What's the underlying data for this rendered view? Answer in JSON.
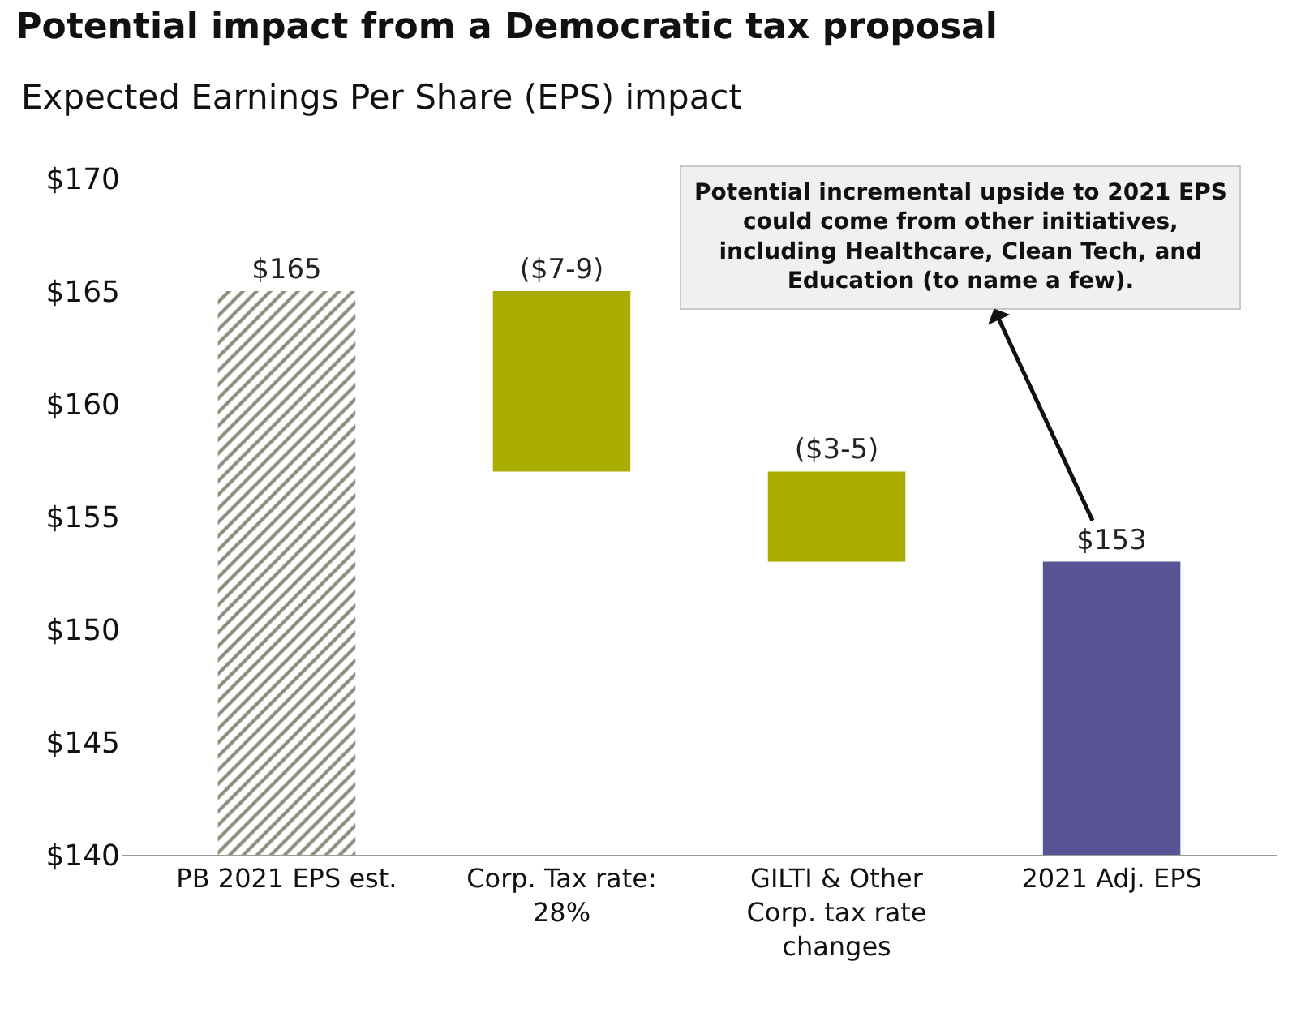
{
  "chart_data": {
    "type": "bar",
    "title": "Potential impact from a Democratic tax proposal",
    "subtitle": "Expected Earnings Per Share (EPS) impact",
    "categories": [
      "PB 2021 EPS est.",
      "Corp. Tax rate: 28%",
      "GILTI & Other Corp. tax rate changes",
      "2021 Adj. EPS"
    ],
    "values": [
      25,
      8,
      4,
      13
    ],
    "base": [
      140,
      157,
      153,
      140
    ],
    "colors": [
      "#8c8c7c",
      "#a8ad00",
      "#a8ad00",
      "#5a5496"
    ],
    "value_labels": [
      "$165",
      "($7-9)",
      "($3-5)",
      "$153"
    ],
    "ylim": [
      140,
      170
    ],
    "yticks": [
      {
        "value": 140,
        "label": "$140"
      },
      {
        "value": 145,
        "label": "$145"
      },
      {
        "value": 150,
        "label": "$150"
      },
      {
        "value": 155,
        "label": "$155"
      },
      {
        "value": 160,
        "label": "$160"
      },
      {
        "value": 165,
        "label": "$165"
      },
      {
        "value": 170,
        "label": "$170"
      }
    ],
    "grid": false,
    "annotations": [
      "Potential incremental upside to 2021 EPS could come from other initiatives, including Healthcare, Clean Tech, and Education (to name a few)."
    ]
  }
}
